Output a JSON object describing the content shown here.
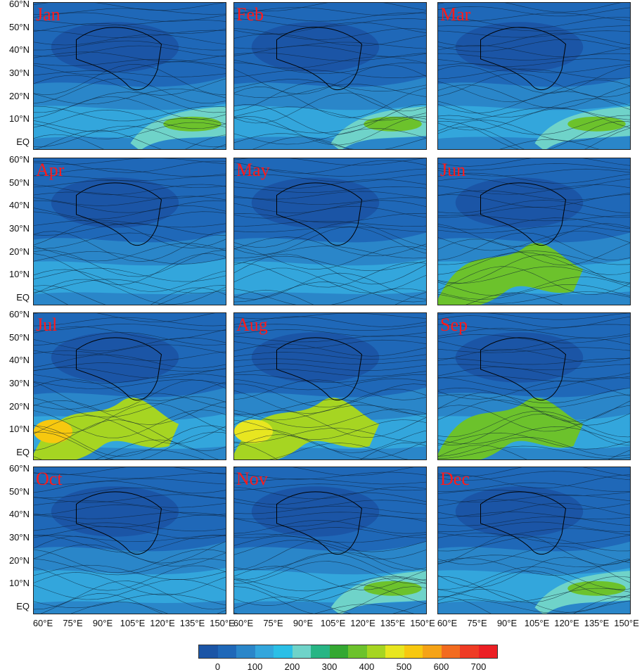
{
  "panels": [
    {
      "month": "Jan"
    },
    {
      "month": "Feb"
    },
    {
      "month": "Mar"
    },
    {
      "month": "Apr"
    },
    {
      "month": "May"
    },
    {
      "month": "Jun"
    },
    {
      "month": "Jul"
    },
    {
      "month": "Aug"
    },
    {
      "month": "Sep"
    },
    {
      "month": "Oct"
    },
    {
      "month": "Nov"
    },
    {
      "month": "Dec"
    }
  ],
  "latitude_labels": [
    "60°N",
    "50°N",
    "40°N",
    "30°N",
    "20°N",
    "10°N",
    "EQ"
  ],
  "longitude_labels": [
    "60°E",
    "75°E",
    "90°E",
    "105°E",
    "120°E",
    "135°E",
    "150°E"
  ],
  "colorbar": {
    "labels": [
      "0",
      "100",
      "200",
      "300",
      "400",
      "500",
      "600",
      "700"
    ],
    "colors": [
      "#1b55a6",
      "#1f68b8",
      "#2a86c9",
      "#33a6dc",
      "#2bbfe6",
      "#6fd3c9",
      "#27b584",
      "#34a832",
      "#6cc22c",
      "#a6d522",
      "#e8e620",
      "#f7c80f",
      "#f5a316",
      "#f26b1f",
      "#ef3b24",
      "#ec1f24"
    ]
  }
}
